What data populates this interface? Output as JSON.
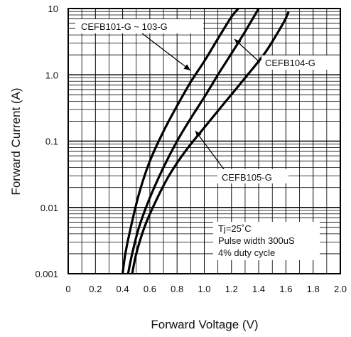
{
  "chart_data": {
    "type": "line",
    "title": "",
    "xlabel": "Forward Voltage (V)",
    "ylabel": "Forward Current (A)",
    "xlim": [
      0,
      2.0
    ],
    "ylim": [
      0.001,
      10
    ],
    "yscale": "log",
    "grid": true,
    "x_ticks": [
      "0",
      "0.2",
      "0.4",
      "0.6",
      "0.8",
      "1.0",
      "1.2",
      "1.4",
      "1.6",
      "1.8",
      "2.0"
    ],
    "y_ticks": [
      "0.001",
      "0.01",
      "0.1",
      "1.0",
      "10"
    ],
    "series": [
      {
        "name": "CEFB101-G ~ 103-G",
        "x": [
          0.4,
          0.42,
          0.46,
          0.52,
          0.6,
          0.7,
          0.8,
          0.9,
          1.0,
          1.1,
          1.2,
          1.25
        ],
        "y": [
          0.001,
          0.002,
          0.005,
          0.016,
          0.05,
          0.14,
          0.34,
          0.78,
          1.6,
          3.5,
          7.5,
          10
        ]
      },
      {
        "name": "CEFB104-G",
        "x": [
          0.44,
          0.47,
          0.52,
          0.6,
          0.7,
          0.8,
          0.9,
          1.0,
          1.1,
          1.2,
          1.3,
          1.4
        ],
        "y": [
          0.001,
          0.002,
          0.005,
          0.014,
          0.04,
          0.1,
          0.22,
          0.46,
          1.0,
          2.1,
          4.5,
          10
        ]
      },
      {
        "name": "CEFB105-G",
        "x": [
          0.47,
          0.5,
          0.56,
          0.64,
          0.74,
          0.86,
          1.0,
          1.15,
          1.3,
          1.45,
          1.58,
          1.62
        ],
        "y": [
          0.001,
          0.002,
          0.005,
          0.012,
          0.03,
          0.07,
          0.16,
          0.38,
          0.9,
          2.2,
          6.0,
          9.0
        ]
      }
    ],
    "annotations": {
      "label_1": "CEFB101-G ~ 103-G",
      "label_2": "CEFB104-G",
      "label_3": "CEFB105-G",
      "conditions": [
        "Tj=25˚C",
        "Pulse width 300uS",
        "4% duty cycle"
      ]
    }
  }
}
